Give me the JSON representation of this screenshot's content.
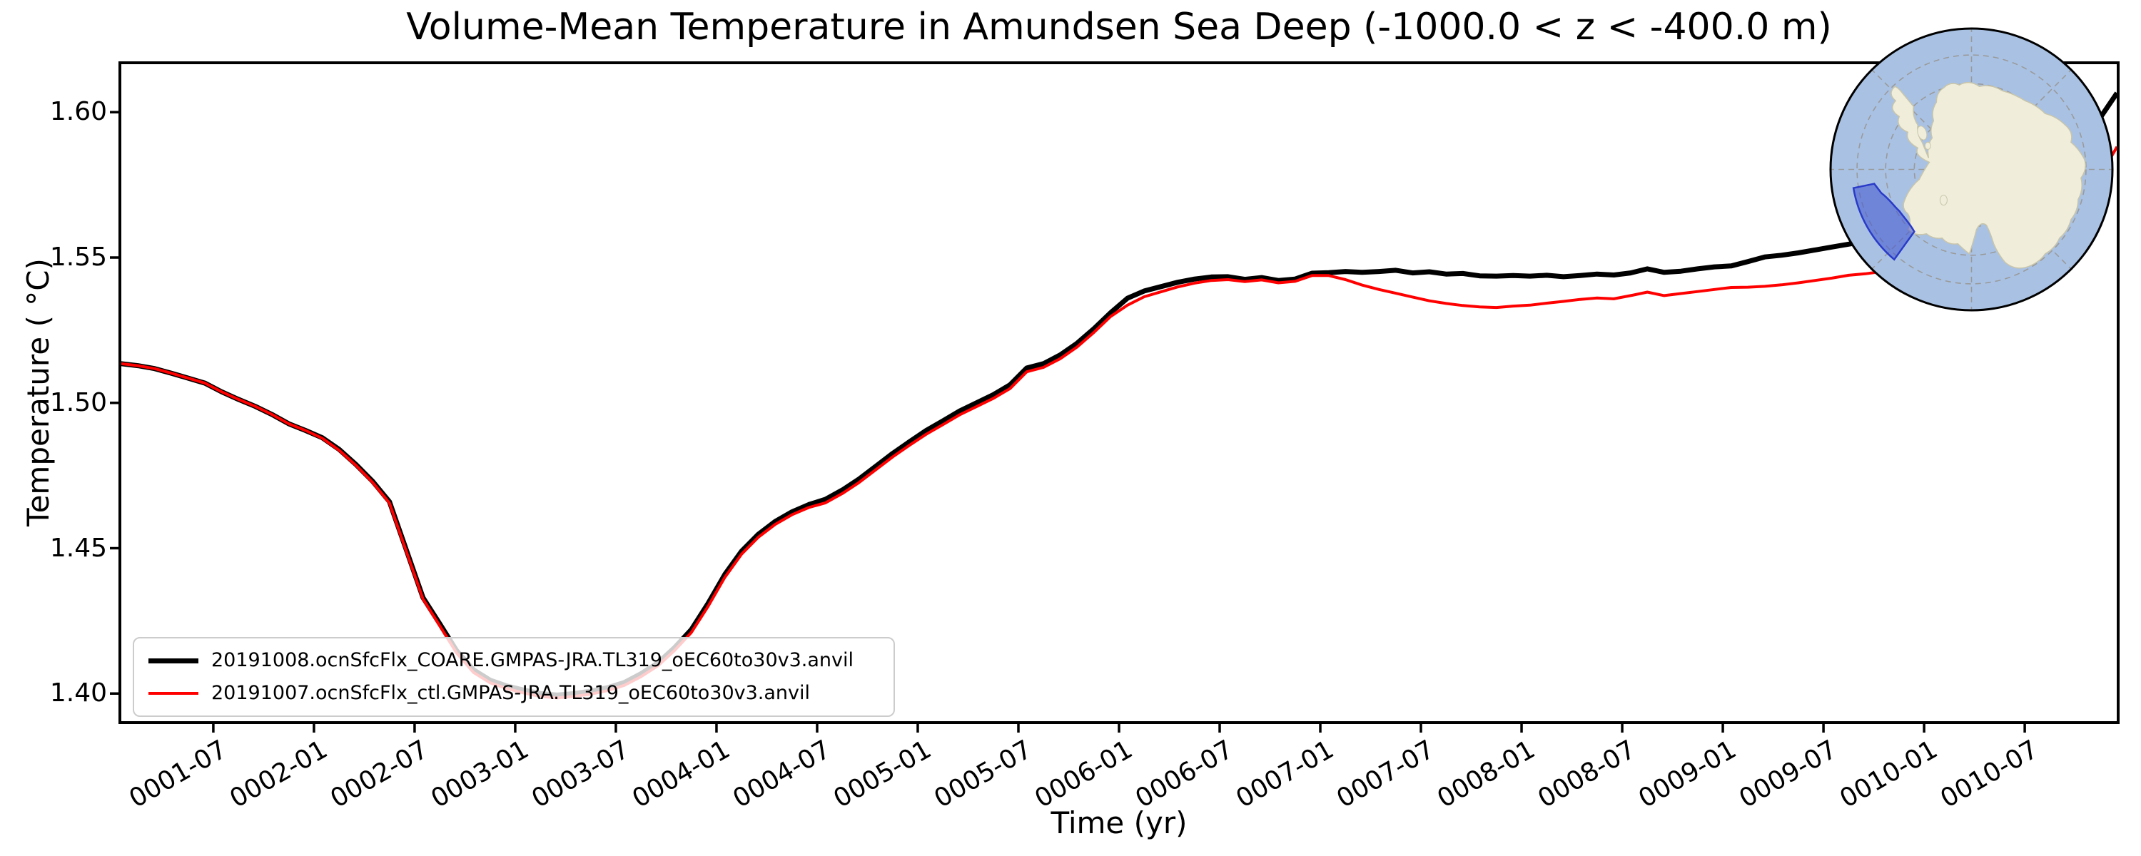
{
  "figure": {
    "title": "Volume-Mean Temperature in Amundsen Sea Deep (-1000.0 < z < -400.0 m)",
    "xlabel": "Time (yr)",
    "ylabel": "Temperature ( °C)"
  },
  "legend": {
    "entries": [
      {
        "label": "20191008.ocnSfcFlx_COARE.GMPAS-JRA.TL319_oEC60to30v3.anvil",
        "color": "#000000",
        "linewidth": 7
      },
      {
        "label": "20191007.ocnSfcFlx_ctl.GMPAS-JRA.TL319_oEC60to30v3.anvil",
        "color": "#ff0000",
        "linewidth": 4
      }
    ]
  },
  "inset_map": {
    "description": "south-polar-stereographic-antarctica-locator",
    "ocean_color": "#a9c2e4",
    "land_color": "#f0eedb",
    "coast_color": "#c9c5a9",
    "graticule_color": "#9a9a9a",
    "region_fill": "#4a5cd0",
    "region_fill_opacity": 0.6,
    "region_stroke": "#2a3bc8",
    "border_color": "#000000"
  },
  "chart_data": {
    "type": "line",
    "title": "Volume-Mean Temperature in Amundsen Sea Deep (-1000.0 < z < -400.0 m)",
    "xlabel": "Time (yr)",
    "ylabel": "Temperature ( °C)",
    "grid": false,
    "legend_position": "lower left",
    "ylim": [
      1.39,
      1.617
    ],
    "xlim_month_index": [
      0.43,
      119.57
    ],
    "y_ticks": [
      {
        "label": "1.40",
        "value": 1.4
      },
      {
        "label": "1.45",
        "value": 1.45
      },
      {
        "label": "1.50",
        "value": 1.5
      },
      {
        "label": "1.55",
        "value": 1.55
      },
      {
        "label": "1.60",
        "value": 1.6
      }
    ],
    "x_ticks": [
      {
        "label": "0001-07",
        "m": 6
      },
      {
        "label": "0002-01",
        "m": 12
      },
      {
        "label": "0002-07",
        "m": 18
      },
      {
        "label": "0003-01",
        "m": 24
      },
      {
        "label": "0003-07",
        "m": 30
      },
      {
        "label": "0004-01",
        "m": 36
      },
      {
        "label": "0004-07",
        "m": 42
      },
      {
        "label": "0005-01",
        "m": 48
      },
      {
        "label": "0005-07",
        "m": 54
      },
      {
        "label": "0006-01",
        "m": 60
      },
      {
        "label": "0006-07",
        "m": 66
      },
      {
        "label": "0007-01",
        "m": 72
      },
      {
        "label": "0007-07",
        "m": 78
      },
      {
        "label": "0008-01",
        "m": 84
      },
      {
        "label": "0008-07",
        "m": 90
      },
      {
        "label": "0009-01",
        "m": 96
      },
      {
        "label": "0009-07",
        "m": 102
      },
      {
        "label": "0010-01",
        "m": 108
      },
      {
        "label": "0010-07",
        "m": 114
      }
    ],
    "x_start_date": "0001-01",
    "x_end_date": "0010-12",
    "series": [
      {
        "name": "20191008.ocnSfcFlx_COARE.GMPAS-JRA.TL319_oEC60to30v3.anvil",
        "color": "#000000",
        "linewidth": 7,
        "values": [
          1.5135,
          1.5128,
          1.5118,
          1.5102,
          1.5085,
          1.5068,
          1.5038,
          1.5012,
          1.4988,
          1.496,
          1.4928,
          1.4905,
          1.488,
          1.484,
          1.4788,
          1.473,
          1.466,
          1.4495,
          1.433,
          1.424,
          1.4148,
          1.4082,
          1.4046,
          1.4026,
          1.4012,
          1.4,
          1.3995,
          1.4,
          1.4008,
          1.402,
          1.4038,
          1.4068,
          1.4105,
          1.4158,
          1.422,
          1.431,
          1.441,
          1.449,
          1.4548,
          1.4592,
          1.4625,
          1.465,
          1.4668,
          1.47,
          1.4738,
          1.4782,
          1.4826,
          1.4866,
          1.4905,
          1.4938,
          1.4972,
          1.5,
          1.5028,
          1.5062,
          1.512,
          1.5135,
          1.5165,
          1.5205,
          1.5255,
          1.531,
          1.536,
          1.5385,
          1.54,
          1.5415,
          1.5426,
          1.5433,
          1.5434,
          1.5425,
          1.5431,
          1.5421,
          1.5426,
          1.5446,
          1.5448,
          1.5452,
          1.5449,
          1.5452,
          1.5456,
          1.5447,
          1.5451,
          1.5443,
          1.5445,
          1.5437,
          1.5436,
          1.5438,
          1.5436,
          1.5439,
          1.5434,
          1.5438,
          1.5443,
          1.544,
          1.5447,
          1.5461,
          1.5449,
          1.5453,
          1.5461,
          1.5468,
          1.5471,
          1.5486,
          1.5502,
          1.5508,
          1.5516,
          1.5526,
          1.5536,
          1.5546,
          1.5556,
          1.5571,
          1.5586,
          1.5601,
          1.5616,
          1.5646,
          1.568,
          1.5711,
          1.5741,
          1.5776,
          1.5811,
          1.5846,
          1.5881,
          1.5926,
          1.5981,
          1.6066
        ]
      },
      {
        "name": "20191007.ocnSfcFlx_ctl.GMPAS-JRA.TL319_oEC60to30v3.anvil",
        "color": "#ff0000",
        "linewidth": 4,
        "values": [
          1.5135,
          1.5128,
          1.5118,
          1.5102,
          1.5085,
          1.5068,
          1.5038,
          1.5012,
          1.4988,
          1.496,
          1.4928,
          1.4905,
          1.4878,
          1.4837,
          1.4785,
          1.4726,
          1.4655,
          1.449,
          1.4325,
          1.4233,
          1.414,
          1.4073,
          1.4037,
          1.4017,
          1.4002,
          1.399,
          1.3985,
          1.399,
          1.3998,
          1.401,
          1.4028,
          1.4058,
          1.4095,
          1.4148,
          1.421,
          1.43,
          1.44,
          1.448,
          1.4538,
          1.4582,
          1.4615,
          1.464,
          1.4656,
          1.4688,
          1.4726,
          1.477,
          1.4814,
          1.4854,
          1.4892,
          1.4925,
          1.4959,
          1.4987,
          1.5015,
          1.5049,
          1.5107,
          1.5122,
          1.5152,
          1.5192,
          1.5242,
          1.5297,
          1.5336,
          1.5365,
          1.5382,
          1.5399,
          1.5412,
          1.5421,
          1.5424,
          1.5417,
          1.5423,
          1.5413,
          1.5418,
          1.5438,
          1.5438,
          1.5424,
          1.5405,
          1.539,
          1.5377,
          1.5364,
          1.5351,
          1.5342,
          1.5335,
          1.533,
          1.5328,
          1.5333,
          1.5336,
          1.5343,
          1.5349,
          1.5356,
          1.5361,
          1.5358,
          1.5369,
          1.5381,
          1.5369,
          1.5376,
          1.5383,
          1.539,
          1.5397,
          1.5398,
          1.5401,
          1.5406,
          1.5413,
          1.5421,
          1.5429,
          1.5439,
          1.5444,
          1.5452,
          1.5461,
          1.5471,
          1.5481,
          1.5497,
          1.5517,
          1.5537,
          1.5561,
          1.5586,
          1.5611,
          1.5641,
          1.5671,
          1.5716,
          1.5781,
          1.5881
        ]
      }
    ]
  }
}
